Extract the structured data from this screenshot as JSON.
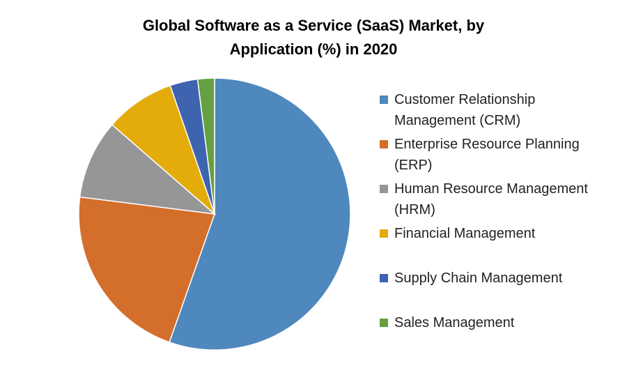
{
  "chart_data": {
    "type": "pie",
    "title": "Global Software as a Service (SaaS) Market, by Application (%) in 2020",
    "categories": [
      "Customer Relationship Management (CRM)",
      "Enterprise Resource Planning (ERP)",
      "Human Resource Management (HRM)",
      "Financial Management",
      "Supply Chain Management",
      "Sales Management"
    ],
    "values": [
      55.4,
      21.6,
      9.4,
      8.3,
      3.3,
      2.0
    ],
    "colors": [
      "#4f88bd",
      "#d46e2b",
      "#969696",
      "#e3ac0a",
      "#3e63af",
      "#65a043"
    ],
    "legend": "right"
  }
}
